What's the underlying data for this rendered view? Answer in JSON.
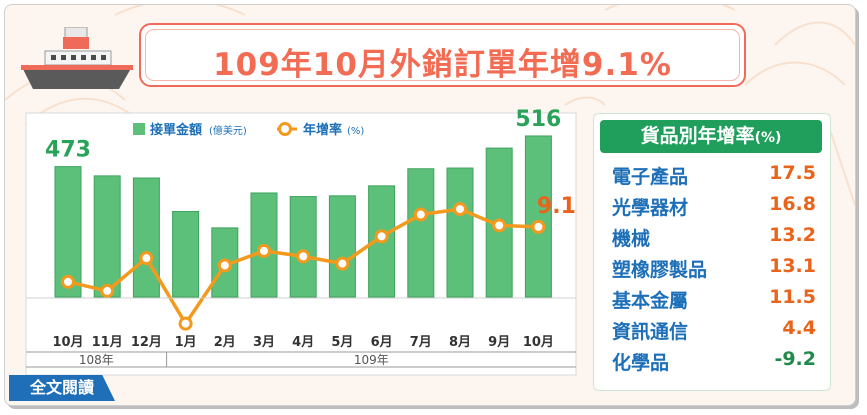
{
  "title": "109年10月外銷訂單年增9.1%",
  "legend": {
    "bar_label": "接單金額",
    "bar_unit": "(億美元)",
    "line_label": "年增率",
    "line_unit": "(%)"
  },
  "colors": {
    "bar": "#5cbf7a",
    "line": "#f39a1e",
    "title": "#f26b53",
    "header": "#1f9e5c",
    "category_name": "#1d6fb8",
    "value": "#e9631a"
  },
  "chart_data": {
    "type": "bar+line",
    "categories": [
      "10月",
      "11月",
      "12月",
      "1月",
      "2月",
      "3月",
      "4月",
      "5月",
      "6月",
      "7月",
      "8月",
      "9月",
      "10月"
    ],
    "year_groups": [
      {
        "label": "108年",
        "months": 3
      },
      {
        "label": "109年",
        "months": 10
      }
    ],
    "series": [
      {
        "name": "接單金額",
        "type": "bar",
        "values": [
          473,
          460,
          457,
          410,
          387,
          436,
          431,
          432,
          446,
          470,
          471,
          499,
          516
        ]
      },
      {
        "name": "年增率",
        "type": "line",
        "values": [
          -6.0,
          -8.5,
          0.5,
          -17.5,
          -1.5,
          2.5,
          1.0,
          -1.0,
          6.5,
          12.5,
          14.0,
          9.5,
          9.1
        ]
      }
    ],
    "data_labels": [
      {
        "series": "接單金額",
        "index": 0,
        "text": "473"
      },
      {
        "series": "接單金額",
        "index": 12,
        "text": "516"
      },
      {
        "series": "年增率",
        "index": 12,
        "text": "9.1"
      }
    ],
    "bar_ylim": [
      290,
      530
    ],
    "line_ylim": [
      -22,
      22
    ]
  },
  "growth_table": {
    "header": "貨品別年增率",
    "header_unit": "(%)",
    "rows": [
      {
        "name": "電子產品",
        "value": "17.5"
      },
      {
        "name": "光學器材",
        "value": "16.8"
      },
      {
        "name": "機械",
        "value": "13.2"
      },
      {
        "name": "塑橡膠製品",
        "value": "13.1"
      },
      {
        "name": "基本金屬",
        "value": "11.5"
      },
      {
        "name": "資訊通信",
        "value": "4.4"
      },
      {
        "name": "化學品",
        "value": "-9.2"
      }
    ]
  },
  "read_more_label": "全文閱讀"
}
